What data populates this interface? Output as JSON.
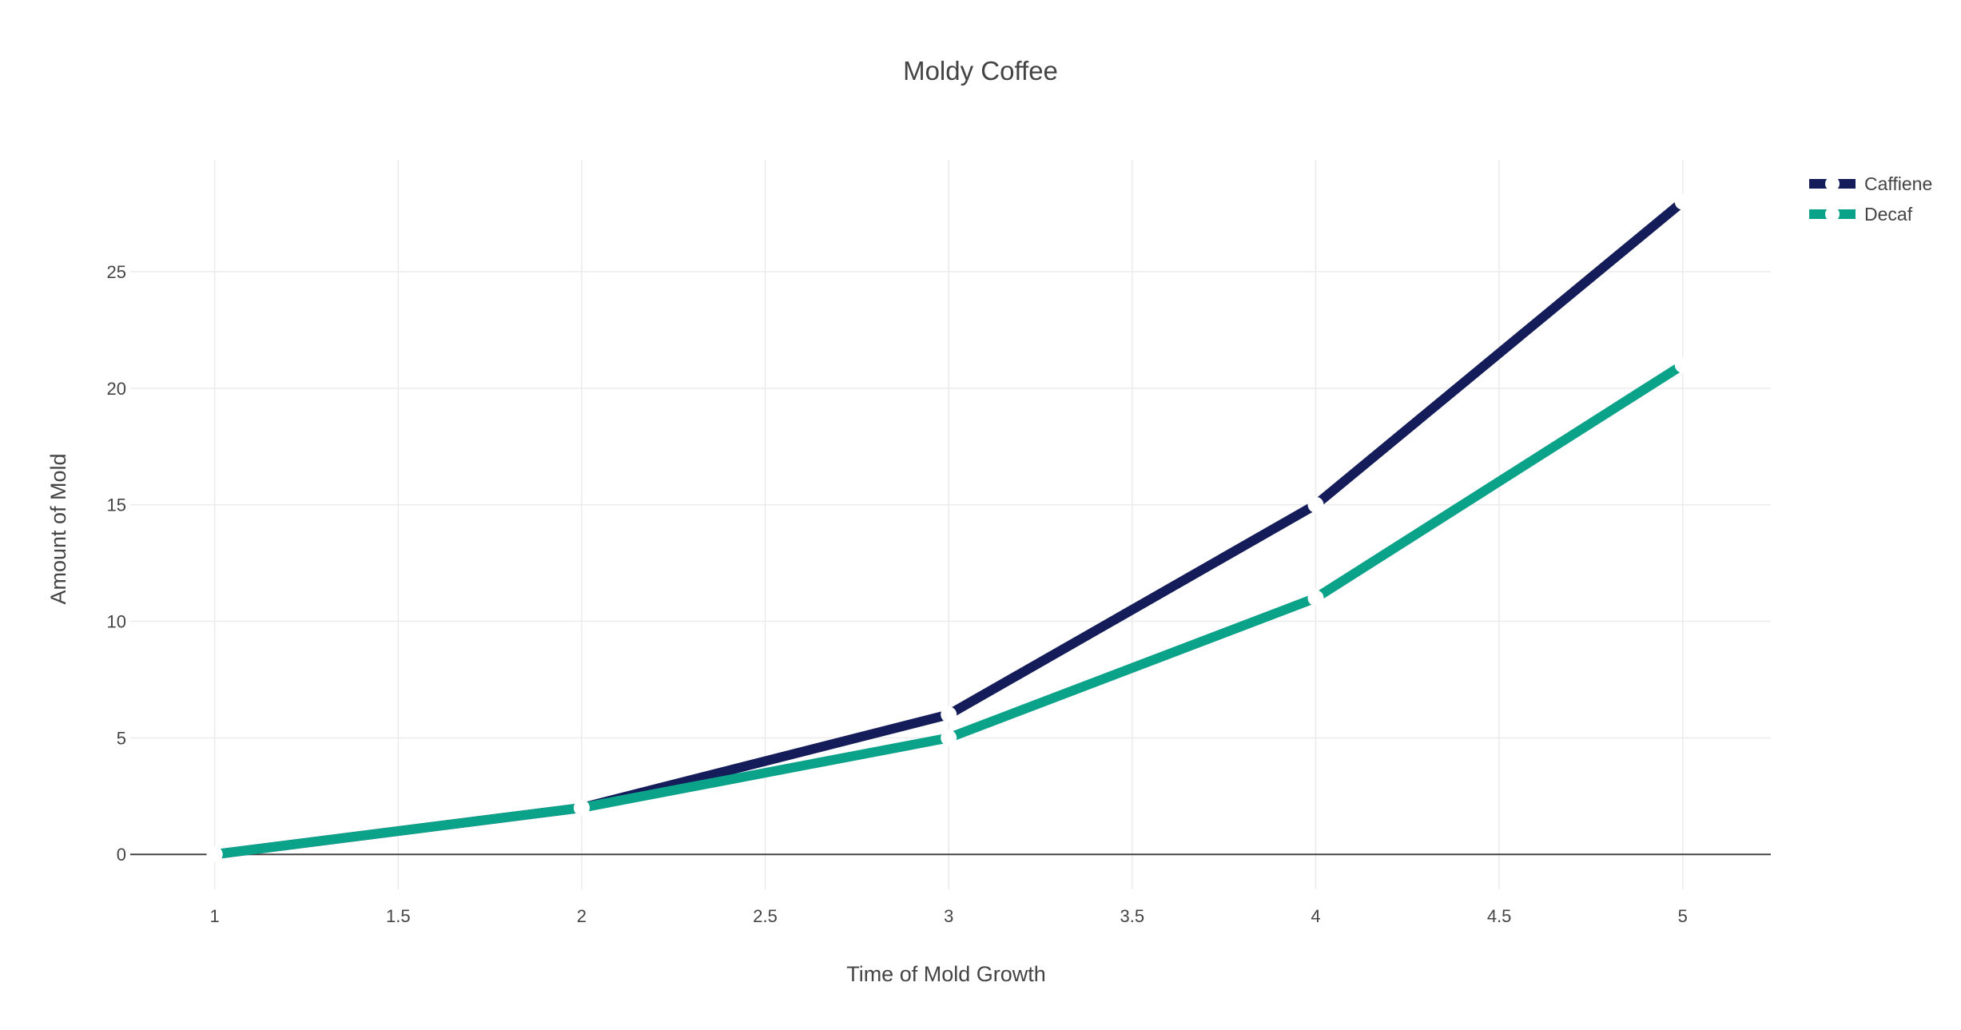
{
  "chart_data": {
    "type": "line",
    "title": "Moldy Coffee",
    "xlabel": "Time of Mold Growth",
    "ylabel": "Amount of Mold",
    "x": [
      1,
      2,
      3,
      4,
      5
    ],
    "series": [
      {
        "name": "Caffiene",
        "values": [
          0,
          2,
          6,
          15,
          28
        ],
        "color": "#141c5a"
      },
      {
        "name": "Decaf",
        "values": [
          0,
          2,
          5,
          11,
          21
        ],
        "color": "#0aa38a"
      }
    ],
    "xlim": [
      0.77,
      5.24
    ],
    "ylim": [
      -1.5,
      29.8
    ],
    "xticks": [
      "1",
      "1.5",
      "2",
      "2.5",
      "3",
      "3.5",
      "4",
      "4.5",
      "5"
    ],
    "yticks": [
      "0",
      "5",
      "10",
      "15",
      "20",
      "25"
    ],
    "grid": true,
    "legend": "top-right",
    "marker_color": "#ffffff"
  }
}
